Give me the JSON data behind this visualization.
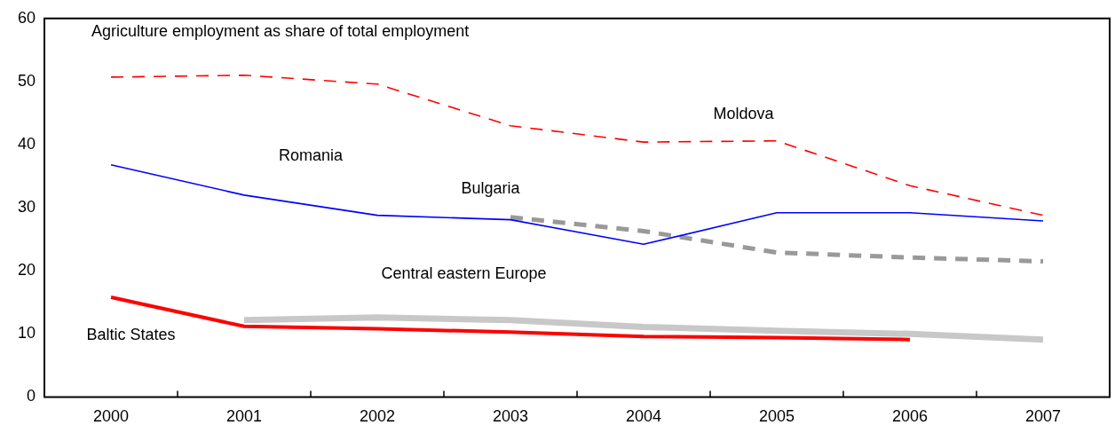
{
  "chart_data": {
    "type": "line",
    "title": "Agriculture employment as share of total employment",
    "categories": [
      "2000",
      "2001",
      "2002",
      "2003",
      "2004",
      "2005",
      "2006",
      "2007"
    ],
    "ylim": [
      0,
      60
    ],
    "yticks": [
      0,
      10,
      20,
      30,
      40,
      50,
      60
    ],
    "grid": false,
    "legend": false,
    "marker": "none",
    "series": [
      {
        "name": "Moldova",
        "color": "#ff0000",
        "line_style": "dashed",
        "values": [
          50.7,
          51.0,
          49.6,
          43.0,
          40.4,
          40.6,
          33.5,
          28.8
        ]
      },
      {
        "name": "Romania",
        "color": "#0000ff",
        "line_style": "solid",
        "values": [
          36.8,
          32.0,
          28.8,
          28.1,
          24.2,
          29.2,
          29.2,
          27.9
        ]
      },
      {
        "name": "Bulgaria",
        "color": "#999999",
        "line_style": "dashed",
        "values": [
          null,
          null,
          null,
          28.5,
          26.3,
          22.9,
          22.1,
          21.5
        ]
      },
      {
        "name": "Central eastern Europe",
        "color": "#c8c8c8",
        "line_style": "solid",
        "values": [
          null,
          12.2,
          12.6,
          12.2,
          11.1,
          10.5,
          10.0,
          9.1
        ]
      },
      {
        "name": "Baltic States",
        "color": "#ff0000",
        "line_style": "solid",
        "values": [
          15.8,
          11.2,
          10.8,
          10.3,
          9.6,
          9.4,
          9.1,
          null
        ]
      }
    ]
  }
}
